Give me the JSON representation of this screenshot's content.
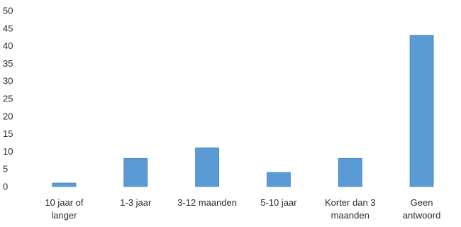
{
  "chart_data": {
    "type": "bar",
    "title": "",
    "xlabel": "",
    "ylabel": "",
    "categories": [
      [
        "10 jaar of",
        "langer"
      ],
      [
        "1-3 jaar"
      ],
      [
        "3-12 maanden"
      ],
      [
        "5-10 jaar"
      ],
      [
        "Korter dan 3",
        "maanden"
      ],
      [
        "Geen",
        "antwoord"
      ]
    ],
    "values": [
      1,
      8,
      11,
      4,
      8,
      43
    ],
    "ylim": [
      0,
      50
    ],
    "yticks": [
      0,
      5,
      10,
      15,
      20,
      25,
      30,
      35,
      40,
      45,
      50
    ],
    "grid": false,
    "legend": "none",
    "bar_color": "#5b9bd5",
    "bar_edge_color": "#3f7fbf"
  }
}
